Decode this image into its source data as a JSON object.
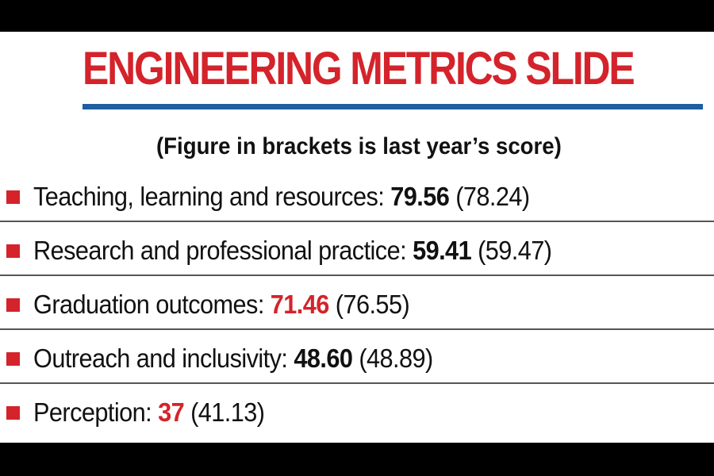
{
  "title": "ENGINEERING METRICS SLIDE",
  "subtitle": "(Figure in brackets is last year’s score)",
  "colors": {
    "accent_red": "#d4232b",
    "rule_blue": "#1e5fa0",
    "frame": "#000000"
  },
  "metrics": [
    {
      "label": "Teaching, learning and resources:",
      "score": "79.56",
      "previous": "(78.24)",
      "score_color": "default"
    },
    {
      "label": "Research and professional practice:",
      "score": "59.41",
      "previous": "(59.47)",
      "score_color": "default"
    },
    {
      "label": "Graduation outcomes:",
      "score": "71.46",
      "previous": "(76.55)",
      "score_color": "red"
    },
    {
      "label": "Outreach and inclusivity:",
      "score": "48.60",
      "previous": "(48.89)",
      "score_color": "default"
    },
    {
      "label": "Perception:",
      "score": "37",
      "previous": "(41.13)",
      "score_color": "red"
    }
  ]
}
